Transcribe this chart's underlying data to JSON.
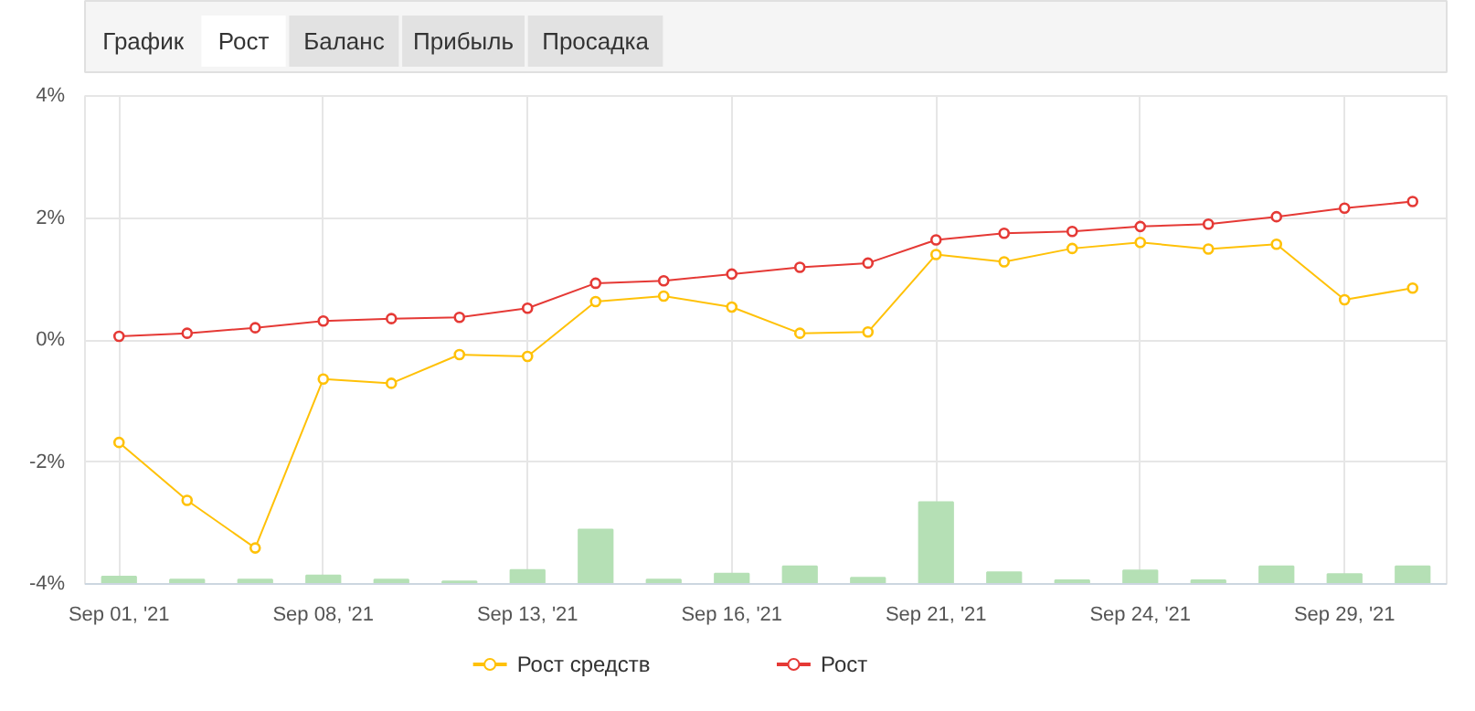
{
  "chart_data": {
    "type": "line",
    "annotations": [
      "График",
      "Рост",
      "Баланс",
      "Прибыль",
      "Просадка"
    ],
    "categories": [
      "Sep 01, '21",
      null,
      null,
      "Sep 08, '21",
      null,
      null,
      "Sep 13, '21",
      null,
      null,
      "Sep 16, '21",
      null,
      null,
      "Sep 21, '21",
      null,
      null,
      "Sep 24, '21",
      null,
      null,
      "Sep 29, '21",
      null
    ],
    "ylim": [
      -4,
      4
    ],
    "yticks": [
      {
        "value": -4,
        "label": "-4%"
      },
      {
        "value": -2,
        "label": "-2%"
      },
      {
        "value": 0,
        "label": "0%"
      },
      {
        "value": 2,
        "label": "2%"
      },
      {
        "value": 4,
        "label": "4%"
      }
    ],
    "grid": true,
    "legend": "bottom",
    "marker": "circle",
    "series": [
      {
        "type": "bar",
        "color": "#b5e0b5",
        "base": [
          -4,
          -4,
          -4,
          -4,
          -4,
          -4,
          -4,
          -4,
          -4,
          -4,
          -4,
          -4,
          -4,
          -4,
          -4,
          -4,
          -4,
          -4,
          -4,
          -4
        ],
        "values": [
          0.12,
          0.07,
          0.07,
          0.14,
          0.07,
          0.04,
          0.23,
          0.89,
          0.07,
          0.17,
          0.29,
          0.1,
          1.34,
          0.19,
          0.06,
          0.22,
          0.06,
          0.29,
          0.16,
          0.29
        ]
      },
      {
        "name": "Рост средств",
        "color": "#ffc107",
        "values": [
          -1.68,
          -2.63,
          -3.41,
          -0.64,
          -0.71,
          -0.24,
          -0.27,
          0.63,
          0.72,
          0.54,
          0.11,
          0.13,
          1.4,
          1.28,
          1.5,
          1.6,
          1.49,
          1.57,
          0.66,
          0.85
        ]
      },
      {
        "name": "Рост",
        "color": "#e53935",
        "values": [
          0.06,
          0.11,
          0.2,
          0.31,
          0.35,
          0.37,
          0.52,
          0.93,
          0.97,
          1.08,
          1.19,
          1.26,
          1.64,
          1.75,
          1.78,
          1.86,
          1.9,
          2.02,
          2.16,
          2.27
        ]
      }
    ]
  }
}
